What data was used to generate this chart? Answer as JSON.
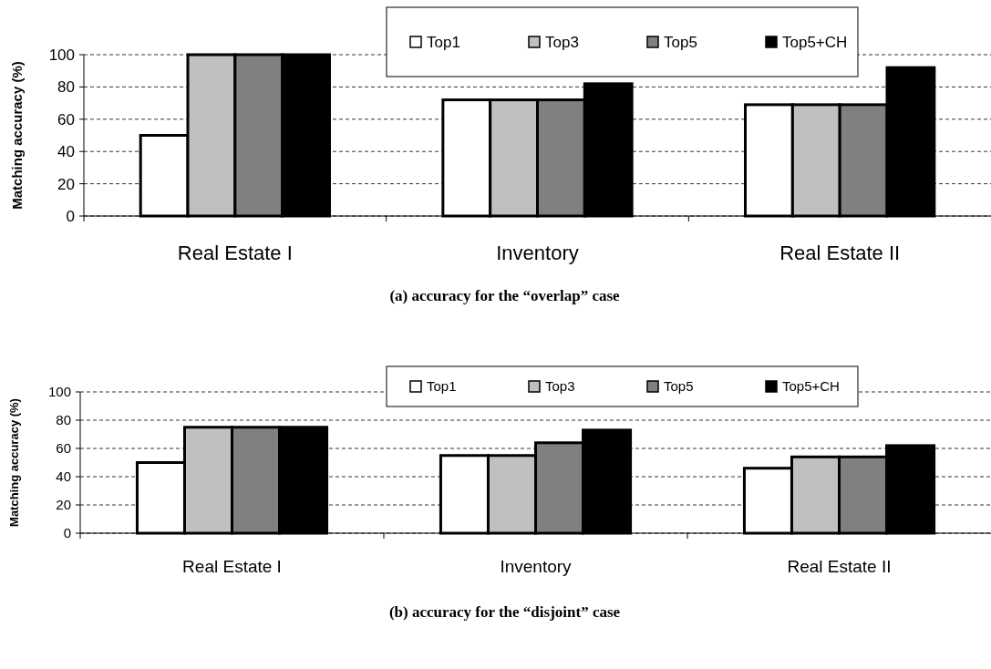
{
  "chart_data": [
    {
      "type": "bar",
      "title": "(a)  accuracy for the “overlap” case",
      "ylabel": "Matching accuracy (%)",
      "categories": [
        "Real Estate I",
        "Inventory",
        "Real Estate II"
      ],
      "series": [
        {
          "name": "Top1",
          "color": "#ffffff",
          "values": [
            50,
            72,
            69
          ]
        },
        {
          "name": "Top3",
          "color": "#c0c0c0",
          "values": [
            100,
            72,
            69
          ]
        },
        {
          "name": "Top5",
          "color": "#808080",
          "values": [
            100,
            72,
            69
          ]
        },
        {
          "name": "Top5+CH",
          "color": "#000000",
          "values": [
            100,
            82,
            92
          ]
        }
      ],
      "ylim": [
        0,
        100
      ],
      "yticks": [
        0,
        20,
        40,
        60,
        80,
        100
      ],
      "grid": "y",
      "legend": "top"
    },
    {
      "type": "bar",
      "title": "(b)  accuracy for the “disjoint” case",
      "ylabel": "Matching accuracy (%)",
      "categories": [
        "Real Estate I",
        "Inventory",
        "Real Estate II"
      ],
      "series": [
        {
          "name": "Top1",
          "color": "#ffffff",
          "values": [
            50,
            55,
            46
          ]
        },
        {
          "name": "Top3",
          "color": "#c0c0c0",
          "values": [
            75,
            55,
            54
          ]
        },
        {
          "name": "Top5",
          "color": "#808080",
          "values": [
            75,
            64,
            54
          ]
        },
        {
          "name": "Top5+CH",
          "color": "#000000",
          "values": [
            75,
            73,
            62
          ]
        }
      ],
      "ylim": [
        0,
        100
      ],
      "yticks": [
        0,
        20,
        40,
        60,
        80,
        100
      ],
      "grid": "y",
      "legend": "top"
    }
  ]
}
